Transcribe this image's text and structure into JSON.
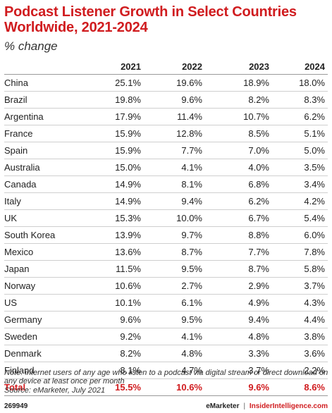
{
  "title": "Podcast Listener Growth in Select Countries Worldwide, 2021-2024",
  "subtitle": "% change",
  "chart_data": {
    "type": "table",
    "title": "Podcast Listener Growth in Select Countries Worldwide, 2021-2024",
    "subtitle": "% change",
    "columns": [
      "",
      "2021",
      "2022",
      "2023",
      "2024"
    ],
    "rows": [
      {
        "country": "China",
        "values": [
          "25.1%",
          "19.6%",
          "18.9%",
          "18.0%"
        ]
      },
      {
        "country": "Brazil",
        "values": [
          "19.8%",
          "9.6%",
          "8.2%",
          "8.3%"
        ]
      },
      {
        "country": "Argentina",
        "values": [
          "17.9%",
          "11.4%",
          "10.7%",
          "6.2%"
        ]
      },
      {
        "country": "France",
        "values": [
          "15.9%",
          "12.8%",
          "8.5%",
          "5.1%"
        ]
      },
      {
        "country": "Spain",
        "values": [
          "15.9%",
          "7.7%",
          "7.0%",
          "5.0%"
        ]
      },
      {
        "country": "Australia",
        "values": [
          "15.0%",
          "4.1%",
          "4.0%",
          "3.5%"
        ]
      },
      {
        "country": "Canada",
        "values": [
          "14.9%",
          "8.1%",
          "6.8%",
          "3.4%"
        ]
      },
      {
        "country": "Italy",
        "values": [
          "14.9%",
          "9.4%",
          "6.2%",
          "4.2%"
        ]
      },
      {
        "country": "UK",
        "values": [
          "15.3%",
          "10.0%",
          "6.7%",
          "5.4%"
        ]
      },
      {
        "country": "South Korea",
        "values": [
          "13.9%",
          "9.7%",
          "8.8%",
          "6.0%"
        ]
      },
      {
        "country": "Mexico",
        "values": [
          "13.6%",
          "8.7%",
          "7.7%",
          "7.8%"
        ]
      },
      {
        "country": "Japan",
        "values": [
          "11.5%",
          "9.5%",
          "8.7%",
          "5.8%"
        ]
      },
      {
        "country": "Norway",
        "values": [
          "10.6%",
          "2.7%",
          "2.9%",
          "3.7%"
        ]
      },
      {
        "country": "US",
        "values": [
          "10.1%",
          "6.1%",
          "4.9%",
          "4.3%"
        ]
      },
      {
        "country": "Germany",
        "values": [
          "9.6%",
          "9.5%",
          "9.4%",
          "4.4%"
        ]
      },
      {
        "country": "Sweden",
        "values": [
          "9.2%",
          "4.1%",
          "4.8%",
          "3.8%"
        ]
      },
      {
        "country": "Denmark",
        "values": [
          "8.2%",
          "4.8%",
          "3.3%",
          "3.6%"
        ]
      },
      {
        "country": "Finland",
        "values": [
          "8.1%",
          "4.7%",
          "3.7%",
          "2.2%"
        ]
      }
    ],
    "total": {
      "label": "Total",
      "values": [
        "15.5%",
        "10.6%",
        "9.6%",
        "8.6%"
      ]
    }
  },
  "note": "Note: internet users of any age who listen to a podcast via digital stream or direct download on any device at least once per month",
  "source": "Source: eMarketer, July 2021",
  "chart_id": "269949",
  "brand": {
    "emarketer": "eMarketer",
    "separator": "|",
    "insider": "InsiderIntelligence.com"
  },
  "colors": {
    "accent": "#d01c1f",
    "text": "#222222",
    "rule": "#cfcfcf"
  }
}
